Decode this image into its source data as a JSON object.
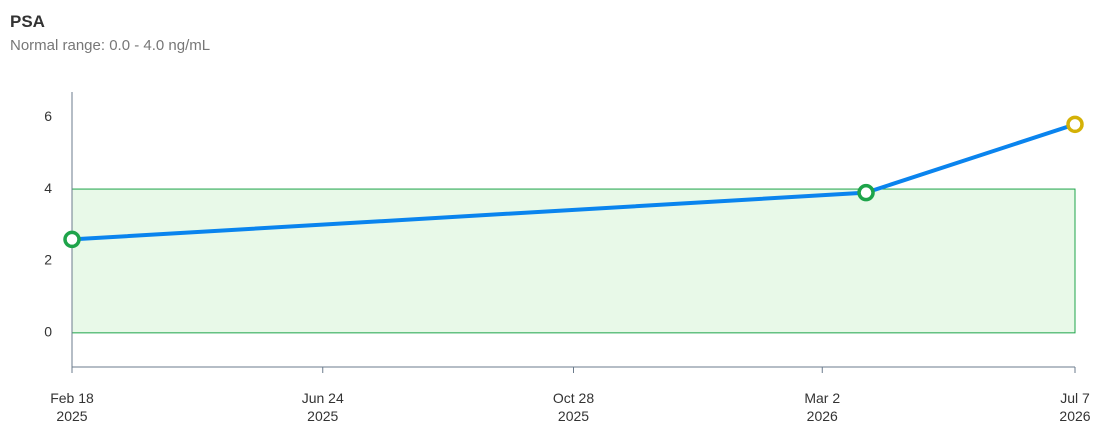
{
  "chart_data": {
    "type": "line",
    "title": "PSA",
    "subtitle": "Normal range: 0.0 - 4.0 ng/mL",
    "normal_range": [
      0,
      4
    ],
    "normal_color": "#1ea44a",
    "high_color": "#d4b106",
    "x": [
      "2025-02-18",
      "2026-03-24",
      "2026-07-07"
    ],
    "series": [
      {
        "name": "PSA",
        "color": "#0a84ee",
        "values": [
          2.6,
          3.9,
          5.8
        ]
      }
    ],
    "xlim": [
      "2025-02-18",
      "2026-07-07"
    ],
    "xticks": [
      {
        "value": "2025-02-18",
        "label": "Feb 18 2025"
      },
      {
        "value": "2025-06-24",
        "label": "Jun 24 2025"
      },
      {
        "value": "2025-10-28",
        "label": "Oct 28 2025"
      },
      {
        "value": "2026-03-02",
        "label": "Mar 2 2026"
      },
      {
        "value": "2026-07-07",
        "label": "Jul 7 2026"
      }
    ],
    "ylim": [
      -0.95,
      6.7
    ],
    "yticks": [
      0,
      2,
      4,
      6
    ]
  }
}
